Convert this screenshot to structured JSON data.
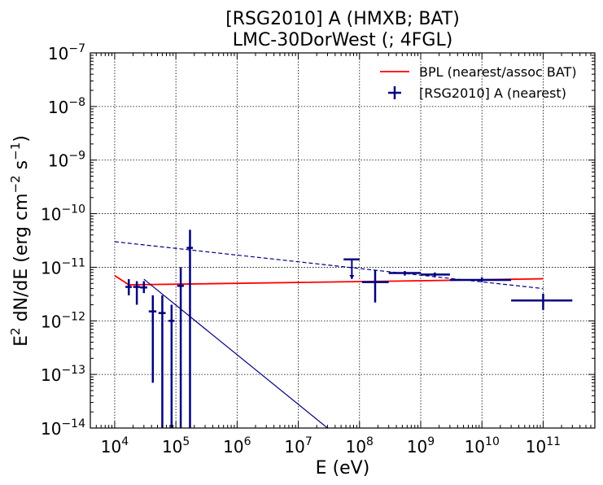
{
  "chart_data": {
    "type": "scatter",
    "title": "[RSG2010] A (HMXB; BAT)",
    "subtitle": "LMC-30DorWest (; 4FGL)",
    "xlabel": "E (eV)",
    "ylabel_main": "E",
    "ylabel_sup": "2",
    "ylabel_rest": " dN/dE (erg cm",
    "ylabel_sup2": "−2",
    "ylabel_mid": " s",
    "ylabel_sup3": "−1",
    "ylabel_end": ")",
    "x_scale": "log",
    "y_scale": "log",
    "xlim": [
      4000,
      700000000000
    ],
    "ylim": [
      1e-14,
      1e-07
    ],
    "grid": true,
    "legend_position": "top-right",
    "x_ticks": [
      {
        "value": 10000,
        "base": "10",
        "exp": "4"
      },
      {
        "value": 100000,
        "base": "10",
        "exp": "5"
      },
      {
        "value": 1000000,
        "base": "10",
        "exp": "6"
      },
      {
        "value": 10000000,
        "base": "10",
        "exp": "7"
      },
      {
        "value": 100000000,
        "base": "10",
        "exp": "8"
      },
      {
        "value": 1000000000,
        "base": "10",
        "exp": "9"
      },
      {
        "value": 10000000000,
        "base": "10",
        "exp": "10"
      },
      {
        "value": 100000000000,
        "base": "10",
        "exp": "11"
      }
    ],
    "y_ticks": [
      {
        "value": 1e-14,
        "base": "10",
        "exp": "−14"
      },
      {
        "value": 1e-13,
        "base": "10",
        "exp": "−13"
      },
      {
        "value": 1e-12,
        "base": "10",
        "exp": "−12"
      },
      {
        "value": 1e-11,
        "base": "10",
        "exp": "−11"
      },
      {
        "value": 1e-10,
        "base": "10",
        "exp": "−10"
      },
      {
        "value": 1e-09,
        "base": "10",
        "exp": "−9"
      },
      {
        "value": 1e-08,
        "base": "10",
        "exp": "−8"
      },
      {
        "value": 1e-07,
        "base": "10",
        "exp": "−7"
      }
    ],
    "legend": [
      {
        "label": "BPL (nearest/assoc BAT)",
        "kind": "line",
        "color": "#ff0000"
      },
      {
        "label": "[RSG2010] A (nearest)",
        "kind": "errorbar",
        "color": "#000080"
      }
    ],
    "colors": {
      "model": "#ff0000",
      "data": "#000080"
    },
    "lines": [
      {
        "name": "BPL (nearest/assoc BAT)",
        "color": "#ff0000",
        "width": 1.8,
        "dash": "",
        "x": [
          10000,
          17000,
          1000000000,
          100000000000
        ],
        "y": [
          7e-12,
          4.7e-12,
          5.6e-12,
          6.1e-12
        ]
      },
      {
        "name": "",
        "color": "#000080",
        "width": 1.2,
        "dash": "5,3",
        "x": [
          10000,
          100000000000
        ],
        "y": [
          3e-11,
          4e-12
        ]
      },
      {
        "name": "",
        "color": "#000080",
        "width": 1.2,
        "dash": "",
        "x": [
          30000,
          30000000
        ],
        "y": [
          6e-12,
          1e-14
        ]
      }
    ],
    "points": [
      {
        "x": 17000,
        "xlo": 15000,
        "xhi": 19000,
        "y": 4.3e-12,
        "ylo": 3e-12,
        "yhi": 6e-12
      },
      {
        "x": 23000,
        "xlo": 20000,
        "xhi": 26000,
        "y": 4.3e-12,
        "ylo": 2e-12,
        "yhi": 5.5e-12
      },
      {
        "x": 30000,
        "xlo": 26000,
        "xhi": 34000,
        "y": 4.2e-12,
        "ylo": 3.3e-12,
        "yhi": 5.5e-12
      },
      {
        "x": 42000,
        "xlo": 36000,
        "xhi": 48000,
        "y": 1.5e-12,
        "ylo": 7e-14,
        "yhi": 3e-12
      },
      {
        "x": 60000,
        "xlo": 52000,
        "xhi": 68000,
        "y": 1.4e-12,
        "ylo": 1e-14,
        "yhi": 3e-12
      },
      {
        "x": 85000,
        "xlo": 76000,
        "xhi": 95000,
        "y": 1e-12,
        "ylo": 1e-14,
        "yhi": 2e-12
      },
      {
        "x": 120000,
        "xlo": 105000,
        "xhi": 135000,
        "y": 4.5e-12,
        "ylo": 1e-14,
        "yhi": 1e-11
      },
      {
        "x": 170000,
        "xlo": 150000,
        "xhi": 190000,
        "y": 2.3e-11,
        "ylo": 1e-14,
        "yhi": 5e-11
      },
      {
        "x": 180000000,
        "xlo": 110000000,
        "xhi": 300000000,
        "y": 5.3e-12,
        "ylo": 2.2e-12,
        "yhi": 9e-12
      },
      {
        "x": 550000000,
        "xlo": 300000000,
        "xhi": 1000000000,
        "y": 7.8e-12,
        "ylo": 7e-12,
        "yhi": 8.5e-12
      },
      {
        "x": 1700000000,
        "xlo": 1000000000,
        "xhi": 3000000000,
        "y": 7.3e-12,
        "ylo": 6.5e-12,
        "yhi": 8e-12
      },
      {
        "x": 10000000000,
        "xlo": 3000000000,
        "xhi": 30000000000,
        "y": 5.8e-12,
        "ylo": 5.3e-12,
        "yhi": 6.5e-12
      },
      {
        "x": 100000000000,
        "xlo": 30000000000,
        "xhi": 300000000000,
        "y": 2.4e-12,
        "ylo": 1.6e-12,
        "yhi": 3.2e-12
      }
    ],
    "upper_limits": [
      {
        "x": 75000000,
        "xlo": 55000000,
        "xhi": 100000000,
        "y": 1.4e-11,
        "arrow_to": 6e-12
      }
    ]
  }
}
